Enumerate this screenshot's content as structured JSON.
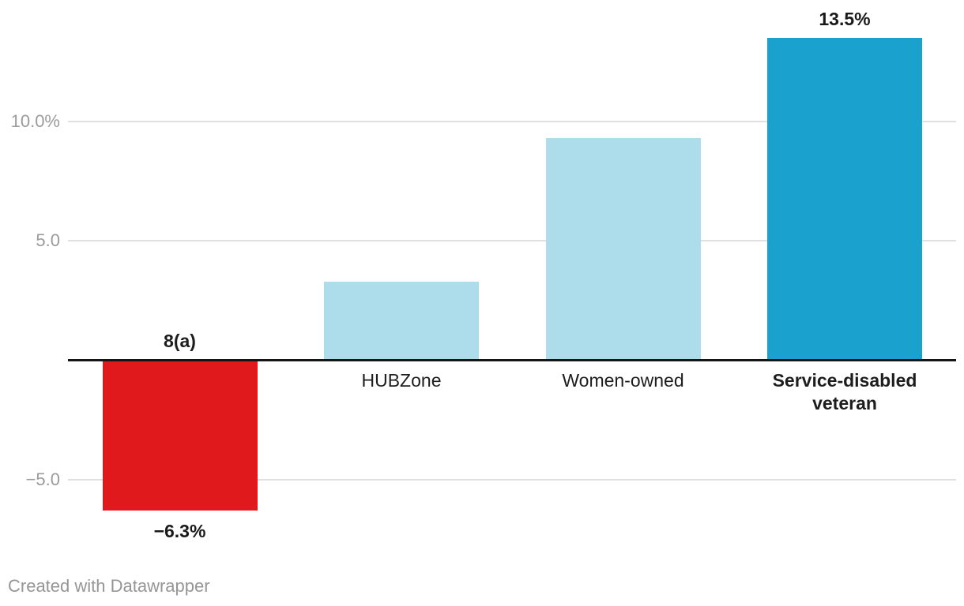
{
  "chart_data": {
    "type": "bar",
    "title": "",
    "categories": [
      "8(a)",
      "HUBZone",
      "Women-owned",
      "Service-disabled veteran"
    ],
    "values": [
      -6.3,
      3.3,
      9.3,
      13.5
    ],
    "bars": [
      {
        "category": "8(a)",
        "value": -6.3,
        "value_label": "−6.3%",
        "color": "#e0191c",
        "category_bold": true
      },
      {
        "category": "HUBZone",
        "value": 3.3,
        "value_label": null,
        "color": "#addcea",
        "category_bold": false
      },
      {
        "category": "Women-owned",
        "value": 9.3,
        "value_label": null,
        "color": "#addcea",
        "category_bold": false
      },
      {
        "category": "Service-disabled veteran",
        "value": 13.5,
        "value_label": "13.5%",
        "color": "#1ba1cd",
        "category_bold": true
      }
    ],
    "xlabel": "",
    "ylabel": "",
    "y_axis": {
      "ticks": [
        {
          "value": 10,
          "label": "10.0%"
        },
        {
          "value": 5,
          "label": "5.0"
        },
        {
          "value": -5,
          "label": "−5.0"
        }
      ],
      "range": [
        -7.5,
        14.5
      ],
      "grid": true,
      "zero_baseline": true
    },
    "legend": null,
    "colors": {
      "negative_bar": "#e0191c",
      "default_bar": "#addcea",
      "emphasis_bar": "#1ba1cd",
      "gridline": "#e0e0e0",
      "axis_line": "#141414",
      "tick_text": "#9b9b9b",
      "label_text": "#1d1d1d"
    }
  },
  "footer": {
    "attribution": "Created with Datawrapper"
  }
}
